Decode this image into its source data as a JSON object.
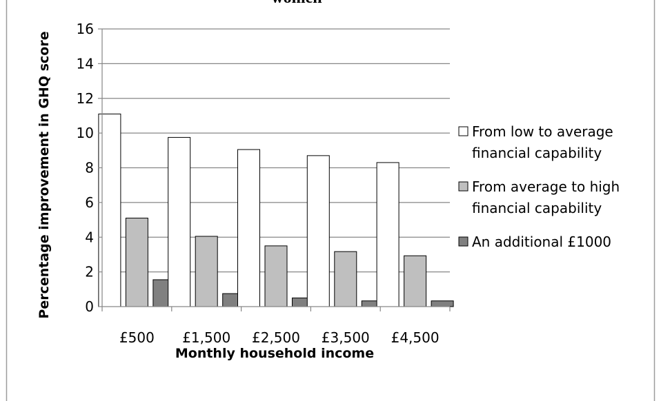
{
  "chart_data": {
    "type": "bar",
    "title": "women",
    "xlabel": "Monthly household income",
    "ylabel": "Percentage improvement in GHQ score",
    "ylim": [
      0,
      16
    ],
    "yticks": [
      0,
      2,
      4,
      6,
      8,
      10,
      12,
      14,
      16
    ],
    "categories": [
      "£500",
      "£1,500",
      "£2,500",
      "£3,500",
      "£4,500"
    ],
    "grid": true,
    "legend_position": "right",
    "series": [
      {
        "name": "From low to average financial capability",
        "legend_lines": [
          "From low to average",
          "financial capability"
        ],
        "color": "#ffffff",
        "values": [
          11.1,
          9.75,
          9.05,
          8.7,
          8.3
        ]
      },
      {
        "name": "From average to high financial capability",
        "legend_lines": [
          "From average to high",
          "financial capability"
        ],
        "color": "#bfbfbf",
        "values": [
          5.1,
          4.05,
          3.5,
          3.17,
          2.93
        ]
      },
      {
        "name": "An additional £1000",
        "legend_lines": [
          "An additional £1000"
        ],
        "color": "#808080",
        "values": [
          1.55,
          0.75,
          0.5,
          0.33,
          0.33
        ]
      }
    ]
  }
}
